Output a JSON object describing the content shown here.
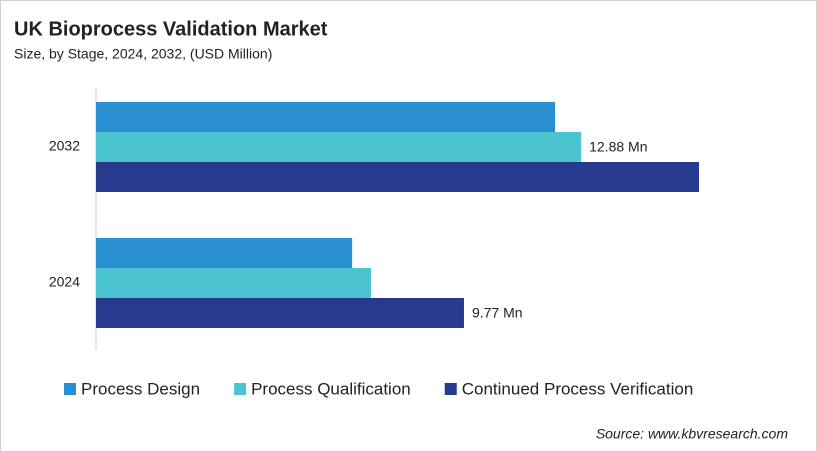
{
  "chart_data": {
    "type": "hbar",
    "title": "UK Bioprocess Validation Market",
    "subtitle": "Size, by Stage, 2024, 2032, (USD Million)",
    "categories": [
      "2032",
      "2024"
    ],
    "series": [
      {
        "name": "Process Design",
        "color": "#2a8fd0",
        "values": [
          12.19,
          6.8
        ]
      },
      {
        "name": "Process Qualification",
        "color": "#4cc4d0",
        "values": [
          12.88,
          7.3
        ],
        "value_labels": [
          "12.88 Mn",
          null
        ]
      },
      {
        "name": "Continued Process Verification",
        "color": "#283a8e",
        "values": [
          16.01,
          9.77
        ],
        "value_labels": [
          null,
          "9.77 Mn"
        ]
      }
    ],
    "legend": "bottom",
    "source": "Source: www.kbvresearch.com"
  }
}
